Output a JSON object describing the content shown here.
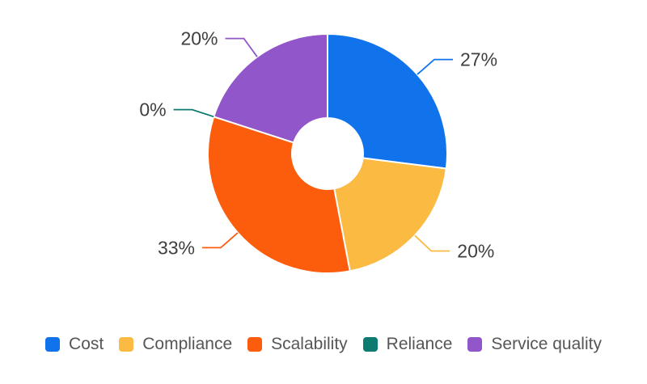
{
  "chart_data": {
    "type": "pie",
    "style": "donut",
    "title": "",
    "categories": [
      "Cost",
      "Compliance",
      "Scalability",
      "Reliance",
      "Service quality"
    ],
    "values": [
      27,
      20,
      33,
      0,
      20
    ],
    "labels": [
      "27%",
      "20%",
      "33%",
      "0%",
      "20%"
    ],
    "colors": [
      "#1173ec",
      "#fbba42",
      "#fb5d0d",
      "#0e7b70",
      "#9156c9"
    ],
    "unit": "%",
    "start_angle_deg": 0,
    "direction": "clockwise",
    "inner_radius_ratio": 0.3,
    "legend_position": "bottom",
    "background": "#ffffff",
    "label_color": "#3f3f3f",
    "legend_text_color": "#565656"
  }
}
